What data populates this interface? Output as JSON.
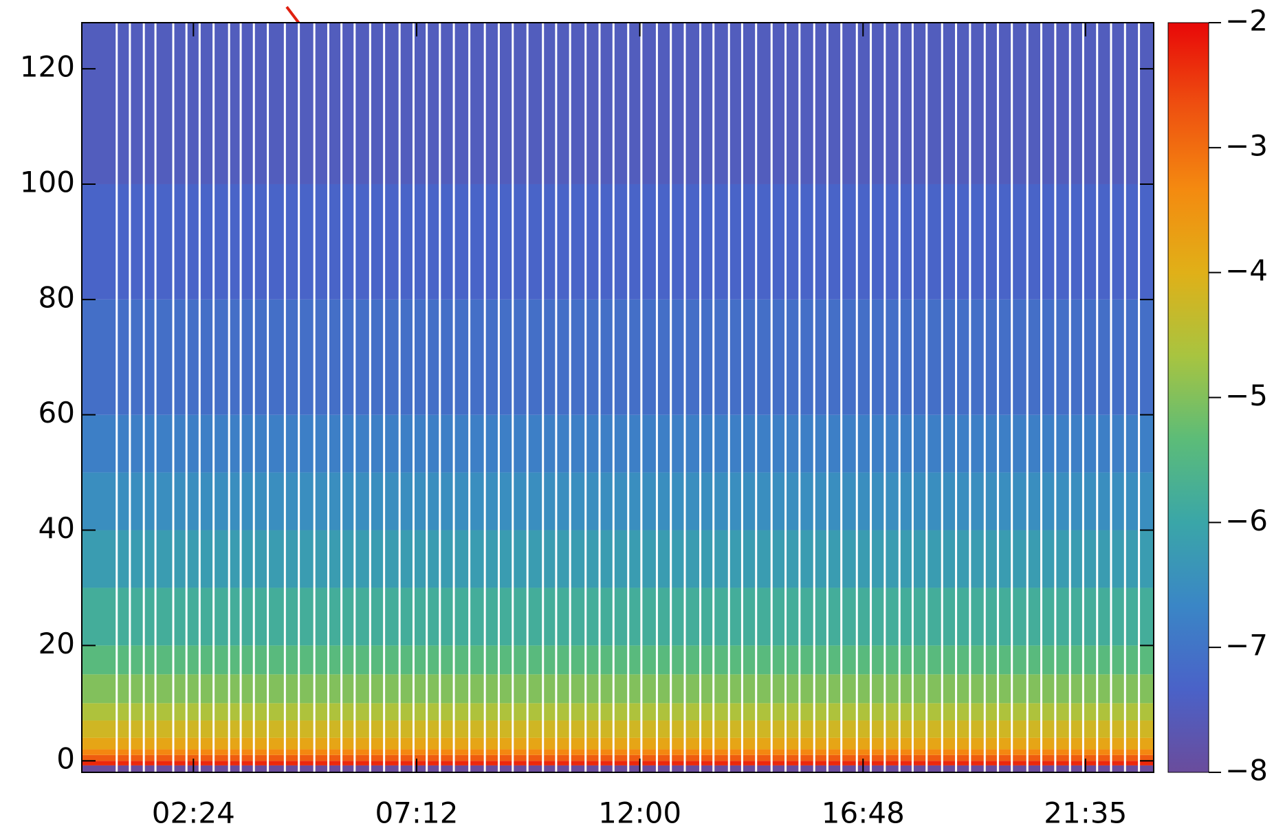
{
  "chart_data": {
    "type": "heatmap",
    "y_bins": [
      -2,
      -0.8,
      0,
      1,
      2,
      4,
      7,
      10,
      15,
      20,
      30,
      40,
      50,
      60,
      80,
      100,
      128
    ],
    "values": [
      -8,
      -2.3,
      -2.8,
      -3.3,
      -3.8,
      -4.2,
      -4.6,
      -5.0,
      -5.4,
      -5.8,
      -6.2,
      -6.5,
      -6.8,
      -7.1,
      -7.3,
      -7.5
    ],
    "gaps": [
      45,
      62,
      80,
      95,
      118,
      135,
      152,
      170,
      190,
      205,
      222,
      240,
      262,
      280,
      300,
      318,
      335,
      352,
      372,
      390,
      410,
      428,
      445,
      462,
      480,
      500,
      520,
      538,
      556,
      575,
      595,
      612,
      630,
      650,
      668,
      686,
      705,
      722,
      742,
      760,
      778,
      798,
      815,
      835,
      852,
      870,
      890,
      908,
      926,
      945,
      962,
      980,
      1000,
      1018,
      1036,
      1055,
      1072,
      1090,
      1110,
      1128,
      1146,
      1165,
      1182,
      1200,
      1220,
      1238,
      1256,
      1275,
      1292,
      1310,
      1328,
      1346,
      1364
    ],
    "gap_color": "#ffffff",
    "xlim": [
      0,
      1383
    ],
    "xticks": [
      {
        "value": 144,
        "label": "02:24"
      },
      {
        "value": 432,
        "label": "07:12"
      },
      {
        "value": 720,
        "label": "12:00"
      },
      {
        "value": 1008,
        "label": "16:48"
      },
      {
        "value": 1295,
        "label": "21:35"
      }
    ],
    "ylim": [
      -2,
      128
    ],
    "yticks": [
      0,
      20,
      40,
      60,
      80,
      100,
      120
    ],
    "clim": [
      -8,
      -2
    ],
    "cticks": [
      {
        "value": -2,
        "label": "−2"
      },
      {
        "value": -3,
        "label": "−3"
      },
      {
        "value": -4,
        "label": "−4"
      },
      {
        "value": -5,
        "label": "−5"
      },
      {
        "value": -6,
        "label": "−6"
      },
      {
        "value": -7,
        "label": "−7"
      },
      {
        "value": -8,
        "label": "−8"
      }
    ],
    "colormap": [
      "#6a4c9c",
      "#4a62c8",
      "#3a86c6",
      "#3aa6a8",
      "#5cbc78",
      "#a8c440",
      "#e0b018",
      "#f48a10",
      "#ee5010",
      "#e80808"
    ]
  }
}
